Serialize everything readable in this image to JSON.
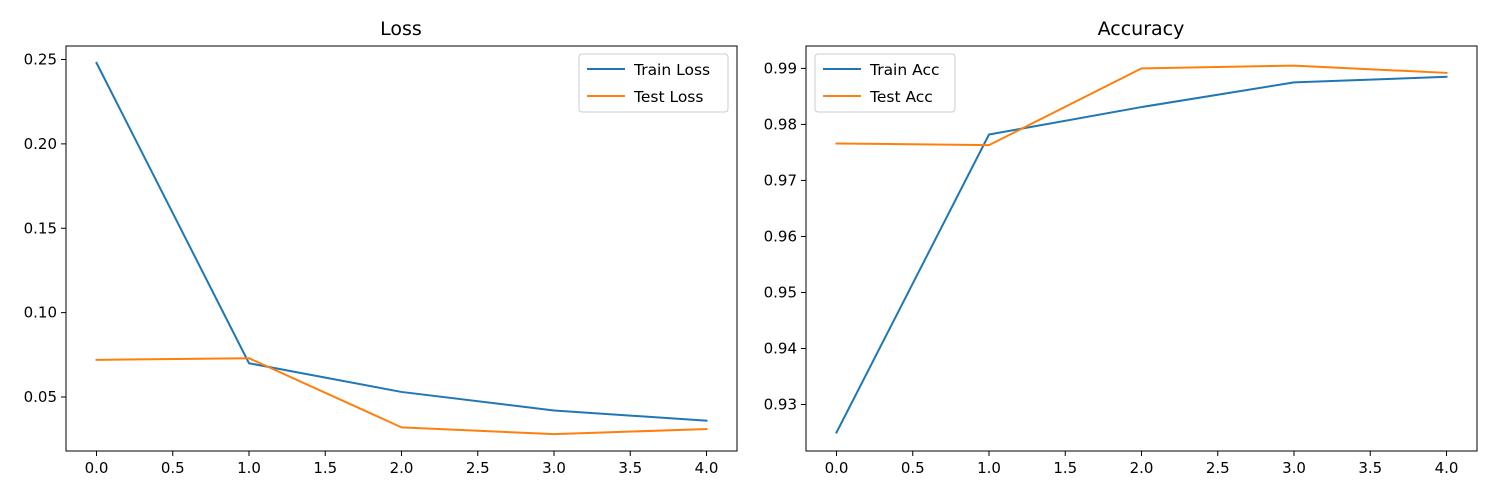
{
  "chart_data": [
    {
      "type": "line",
      "title": "Loss",
      "xlabel": "",
      "ylabel": "",
      "x": [
        0,
        1,
        2,
        3,
        4
      ],
      "xlim": [
        -0.2,
        4.2
      ],
      "ylim": [
        0.018,
        0.258
      ],
      "xticks": [
        0.0,
        0.5,
        1.0,
        1.5,
        2.0,
        2.5,
        3.0,
        3.5,
        4.0
      ],
      "xtick_labels": [
        "0.0",
        "0.5",
        "1.0",
        "1.5",
        "2.0",
        "2.5",
        "3.0",
        "3.5",
        "4.0"
      ],
      "yticks": [
        0.05,
        0.1,
        0.15,
        0.2,
        0.25
      ],
      "ytick_labels": [
        "0.05",
        "0.10",
        "0.15",
        "0.20",
        "0.25"
      ],
      "grid": false,
      "legend": "top-right",
      "series": [
        {
          "name": "Train Loss",
          "color": "#1f77b4",
          "values": [
            0.248,
            0.07,
            0.053,
            0.042,
            0.036
          ]
        },
        {
          "name": "Test Loss",
          "color": "#ff7f0e",
          "values": [
            0.072,
            0.073,
            0.032,
            0.028,
            0.031
          ]
        }
      ]
    },
    {
      "type": "line",
      "title": "Accuracy",
      "xlabel": "",
      "ylabel": "",
      "x": [
        0,
        1,
        2,
        3,
        4
      ],
      "xlim": [
        -0.2,
        4.2
      ],
      "ylim": [
        0.9217,
        0.994
      ],
      "xticks": [
        0.0,
        0.5,
        1.0,
        1.5,
        2.0,
        2.5,
        3.0,
        3.5,
        4.0
      ],
      "xtick_labels": [
        "0.0",
        "0.5",
        "1.0",
        "1.5",
        "2.0",
        "2.5",
        "3.0",
        "3.5",
        "4.0"
      ],
      "yticks": [
        0.93,
        0.94,
        0.95,
        0.96,
        0.97,
        0.98,
        0.99
      ],
      "ytick_labels": [
        "0.93",
        "0.94",
        "0.95",
        "0.96",
        "0.97",
        "0.98",
        "0.99"
      ],
      "grid": false,
      "legend": "top-left",
      "series": [
        {
          "name": "Train Acc",
          "color": "#1f77b4",
          "values": [
            0.925,
            0.9782,
            0.9831,
            0.9875,
            0.9885
          ]
        },
        {
          "name": "Test Acc",
          "color": "#ff7f0e",
          "values": [
            0.9766,
            0.9763,
            0.99,
            0.9905,
            0.9892
          ]
        }
      ]
    }
  ]
}
